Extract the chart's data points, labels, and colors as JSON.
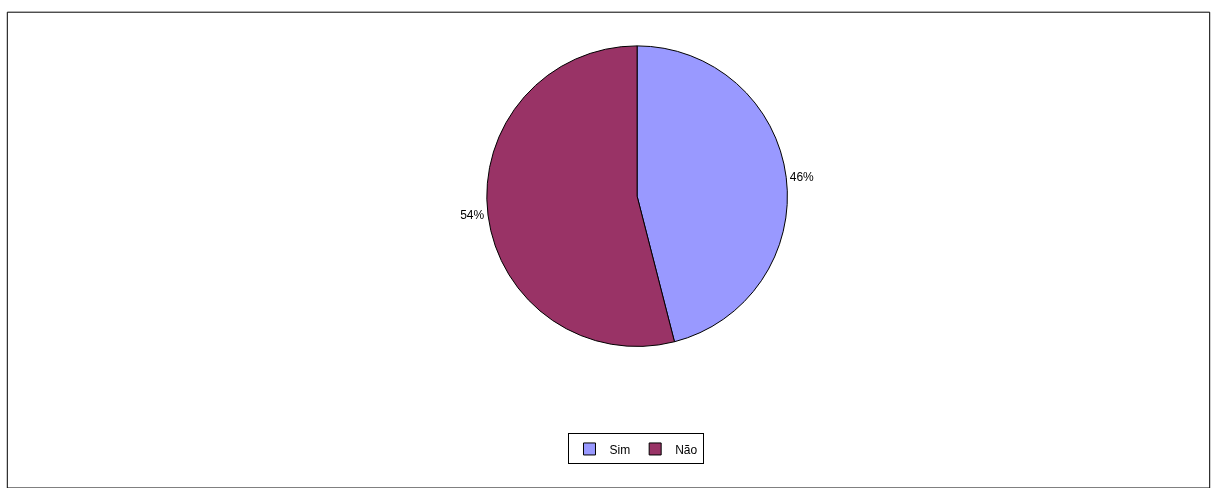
{
  "chart_data": {
    "type": "pie",
    "categories": [
      "Sim",
      "Não"
    ],
    "values": [
      46,
      54
    ],
    "colors": [
      "#9999ff",
      "#993366"
    ],
    "value_labels": [
      "46%",
      "54%"
    ],
    "legend": "bottom"
  }
}
